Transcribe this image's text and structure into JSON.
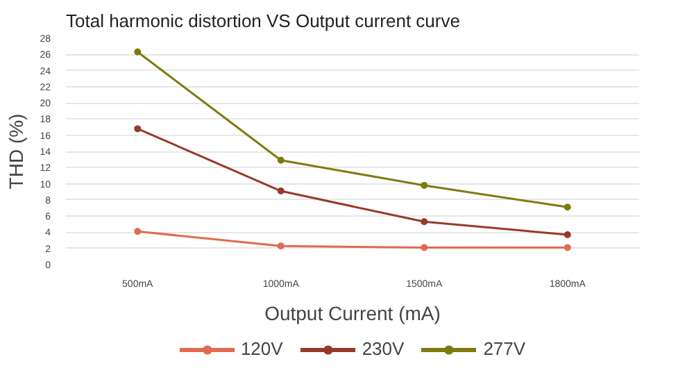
{
  "chart_data": {
    "type": "line",
    "title": "Total harmonic distortion VS Output current curve",
    "xlabel": "Output Current (mA)",
    "ylabel": "THD (%)",
    "categories": [
      "500mA",
      "1000mA",
      "1500mA",
      "1800mA"
    ],
    "series": [
      {
        "name": "120V",
        "color": "#e06b50",
        "values": [
          4.1,
          2.3,
          2.1,
          2.1
        ]
      },
      {
        "name": "230V",
        "color": "#973a2a",
        "values": [
          16.8,
          9.1,
          5.3,
          3.7
        ]
      },
      {
        "name": "277V",
        "color": "#7f7a0e",
        "values": [
          26.3,
          12.9,
          9.8,
          7.1
        ]
      }
    ],
    "ylim": [
      0,
      28
    ],
    "yticks": [
      0,
      2,
      4,
      6,
      8,
      10,
      12,
      14,
      16,
      18,
      20,
      22,
      24,
      26,
      28
    ],
    "grid": "y",
    "legend": "bottom",
    "marker": "circle",
    "line_style": "solid"
  }
}
